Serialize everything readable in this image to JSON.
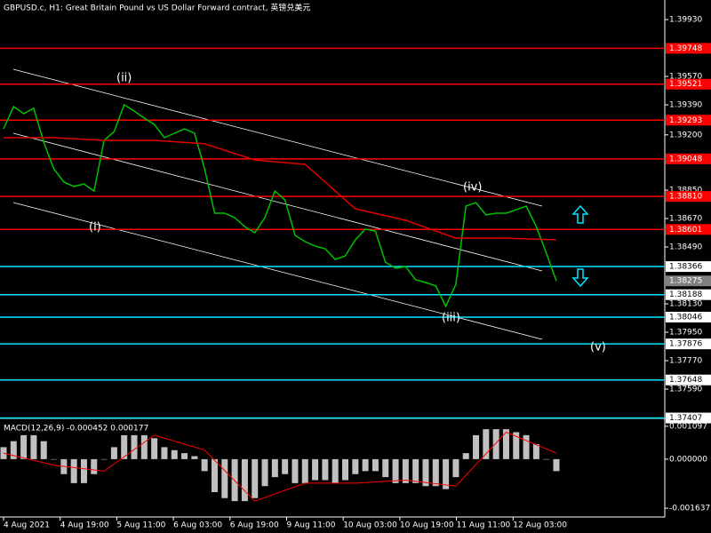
{
  "chart_data": [
    {
      "type": "line",
      "title": "GBPUSD.c, H1:  Great Britain Pound vs US Dollar Forward contract, 英镑兑美元",
      "values": [
        1.39238,
        1.39379,
        1.39334,
        1.39368,
        1.39154,
        1.38985,
        1.38901,
        1.38873,
        1.38889,
        1.38844,
        1.39165,
        1.39221,
        1.3939,
        1.39351,
        1.39306,
        1.39266,
        1.39182,
        1.3921,
        1.39238,
        1.3921,
        1.38985,
        1.38704,
        1.38704,
        1.38676,
        1.38619,
        1.3858,
        1.38676,
        1.38844,
        1.38788,
        1.38563,
        1.38524,
        1.38496,
        1.38479,
        1.38411,
        1.38434,
        1.38535,
        1.38603,
        1.38591,
        1.38394,
        1.38355,
        1.38366,
        1.38282,
        1.38265,
        1.38243,
        1.38113,
        1.38254,
        1.38749,
        1.38771,
        1.38693,
        1.38704,
        1.38704,
        1.38726,
        1.38749,
        1.38619,
        1.38451,
        1.38275
      ],
      "color": "#00c000",
      "ma_values": [
        1.39182,
        1.39182,
        1.39165,
        1.39165,
        1.39143,
        1.39041,
        1.39013,
        1.38732,
        1.38659,
        1.38546,
        1.38546,
        1.38535
      ],
      "ma_color": "#e00000",
      "ylim": [
        1.3741,
        1.40054
      ],
      "yticks": [
        {
          "value": 1.3993,
          "label": "1.39930"
        },
        {
          "value": 1.3957,
          "label": "1.39570"
        },
        {
          "value": 1.3939,
          "label": "1.39390"
        },
        {
          "value": 1.392,
          "label": "1.39200"
        },
        {
          "value": 1.3885,
          "label": "1.38850"
        },
        {
          "value": 1.3867,
          "label": "1.38670"
        },
        {
          "value": 1.3849,
          "label": "1.38490"
        },
        {
          "value": 1.3813,
          "label": "1.38130"
        },
        {
          "value": 1.3795,
          "label": "1.37950"
        },
        {
          "value": 1.3777,
          "label": "1.37770"
        },
        {
          "value": 1.3759,
          "label": "1.37590"
        }
      ],
      "levels": [
        {
          "value": 1.39748,
          "color": "#ff0000"
        },
        {
          "value": 1.39521,
          "color": "#ff0000"
        },
        {
          "value": 1.39293,
          "color": "#ff0000"
        },
        {
          "value": 1.39048,
          "color": "#ff0000"
        },
        {
          "value": 1.3881,
          "label": "1.38810",
          "color": "#ff0000"
        },
        {
          "value": 1.38601,
          "color": "#ff0000"
        },
        {
          "value": 1.38366,
          "color": "#00e5ff"
        },
        {
          "value": 1.38188,
          "color": "#00e5ff"
        },
        {
          "value": 1.38046,
          "color": "#00e5ff"
        },
        {
          "value": 1.37876,
          "color": "#00e5ff"
        },
        {
          "value": 1.37648,
          "color": "#00e5ff"
        },
        {
          "value": 1.37407,
          "color": "#00e5ff"
        }
      ],
      "current": {
        "value": 1.38275,
        "color": "#808080"
      },
      "annotations": [
        "(i)",
        "(ii)",
        "(iii)",
        "(iv)",
        "(v)"
      ],
      "x_tick_labels": [
        "4 Aug 2021",
        "4 Aug 19:00",
        "5 Aug 11:00",
        "6 Aug 03:00",
        "6 Aug 19:00",
        "9 Aug 11:00",
        "10 Aug 03:00",
        "10 Aug 19:00",
        "11 Aug 11:00",
        "12 Aug 03:00"
      ]
    },
    {
      "type": "bar",
      "title": "MACD(12,26,9) -0.000452 0.000177",
      "values": [
        0.0004,
        0.0006,
        0.0008,
        0.0008,
        0.0006,
        0.0,
        -0.0005,
        -0.0008,
        -0.0008,
        -0.0005,
        0.0,
        0.0004,
        0.0008,
        0.0008,
        0.0008,
        0.0007,
        0.0004,
        0.0003,
        0.0002,
        0.0001,
        -0.0004,
        -0.0011,
        -0.0013,
        -0.0014,
        -0.0014,
        -0.0013,
        -0.0009,
        -0.0006,
        -0.0005,
        -0.0008,
        -0.0008,
        -0.0007,
        -0.0007,
        -0.0008,
        -0.0007,
        -0.0005,
        -0.0004,
        -0.0004,
        -0.0006,
        -0.0008,
        -0.0008,
        -0.0008,
        -0.0009,
        -0.0009,
        -0.001,
        -0.0006,
        0.0002,
        0.0008,
        0.001,
        0.001,
        0.001,
        0.0009,
        0.0008,
        0.0005,
        0.0,
        -0.0004
      ],
      "color": "#c0c0c0",
      "signal_values": [
        0.0002,
        -0.0002,
        -0.0004,
        0.0008,
        0.0003,
        -0.0014,
        -0.0008,
        -0.0008,
        -0.0007,
        -0.0009,
        0.0009,
        0.0002
      ],
      "signal_color": "#ff0000",
      "ylim": [
        -0.00193,
        0.0013
      ],
      "yticks": [
        {
          "value": 0.001097,
          "label": "0.001097"
        },
        {
          "value": 0,
          "label": "0.000000"
        },
        {
          "value": -0.001637,
          "label": "-0.001637"
        }
      ]
    }
  ]
}
